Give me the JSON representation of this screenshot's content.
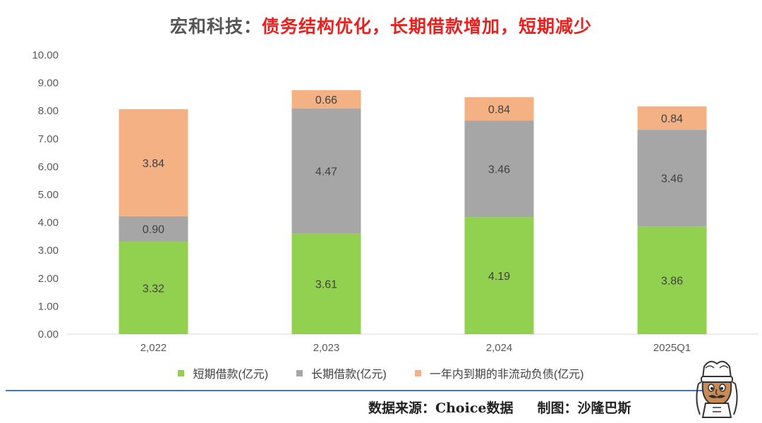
{
  "header": {
    "company": "宏和科技：",
    "headline": "债务结构优化，长期借款增加，短期减少"
  },
  "chart_data": {
    "type": "bar",
    "stacked": true,
    "categories": [
      "2,022",
      "2,023",
      "2,024",
      "2025Q1"
    ],
    "series": [
      {
        "name": "短期借款(亿元)",
        "color": "#92d050",
        "values": [
          3.32,
          3.61,
          4.19,
          3.86
        ],
        "labels": [
          "3.32",
          "3.61",
          "4.19",
          "3.86"
        ]
      },
      {
        "name": "长期借款(亿元)",
        "color": "#a6a6a6",
        "values": [
          0.9,
          4.47,
          3.46,
          3.46
        ],
        "labels": [
          "0.90",
          "4.47",
          "3.46",
          "3.46"
        ]
      },
      {
        "name": "一年内到期的非流动负债(亿元)",
        "color": "#f4b183",
        "values": [
          3.84,
          0.66,
          0.84,
          0.84
        ],
        "labels": [
          "3.84",
          "0.66",
          "0.84",
          "0.84"
        ]
      }
    ],
    "ylim": [
      0,
      10
    ],
    "yticks": [
      "0.00",
      "1.00",
      "2.00",
      "3.00",
      "4.00",
      "5.00",
      "6.00",
      "7.00",
      "8.00",
      "9.00",
      "10.00"
    ],
    "grid": false,
    "legend_position": "bottom"
  },
  "footer": {
    "source": "数据来源：Choice数据",
    "credit": "制图：沙隆巴斯"
  },
  "mascot": {
    "icon": "chef-mascot-icon"
  }
}
